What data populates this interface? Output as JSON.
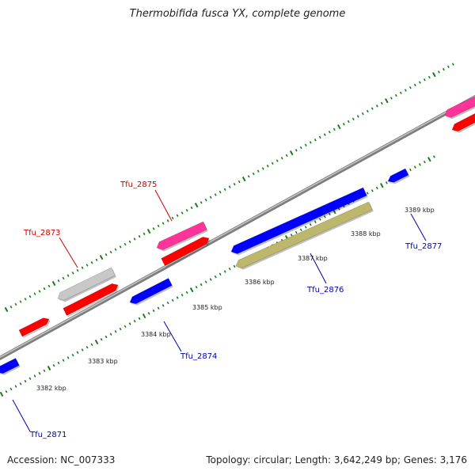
{
  "header": {
    "title": "Thermobifida fusca YX, complete genome"
  },
  "footer": {
    "accession": "Accession: NC_007333",
    "summary": "Topology: circular; Length: 3,642,249 bp; Genes: 3,176"
  },
  "colors": {
    "backbone": "#8c8c8c",
    "tick": "#1a7a1a",
    "kbp_label": "#222222",
    "forward_label": "#cc0000",
    "reverse_label": "#0000aa"
  },
  "kbp_labels": [
    "3382 kbp",
    "3383 kbp",
    "3384 kbp",
    "3385 kbp",
    "3386 kbp",
    "3387 kbp",
    "3388 kbp",
    "3389 kbp"
  ],
  "gene_labels": [
    {
      "text": "Tfu_2871",
      "strand": "reverse"
    },
    {
      "text": "Tfu_2873",
      "strand": "forward"
    },
    {
      "text": "Tfu_2874",
      "strand": "reverse"
    },
    {
      "text": "Tfu_2875",
      "strand": "forward"
    },
    {
      "text": "Tfu_2876",
      "strand": "reverse"
    },
    {
      "text": "Tfu_2877",
      "strand": "reverse"
    }
  ],
  "features": [
    {
      "name": "forward-red-feature",
      "color": "#ff0000"
    },
    {
      "name": "forward-grey-feature",
      "color": "#c8c8c8"
    },
    {
      "name": "forward-pink-feature",
      "color": "#ff3399"
    },
    {
      "name": "reverse-blue-feature",
      "color": "#0000ff"
    },
    {
      "name": "reverse-olive-feature",
      "color": "#bdb76b"
    }
  ]
}
